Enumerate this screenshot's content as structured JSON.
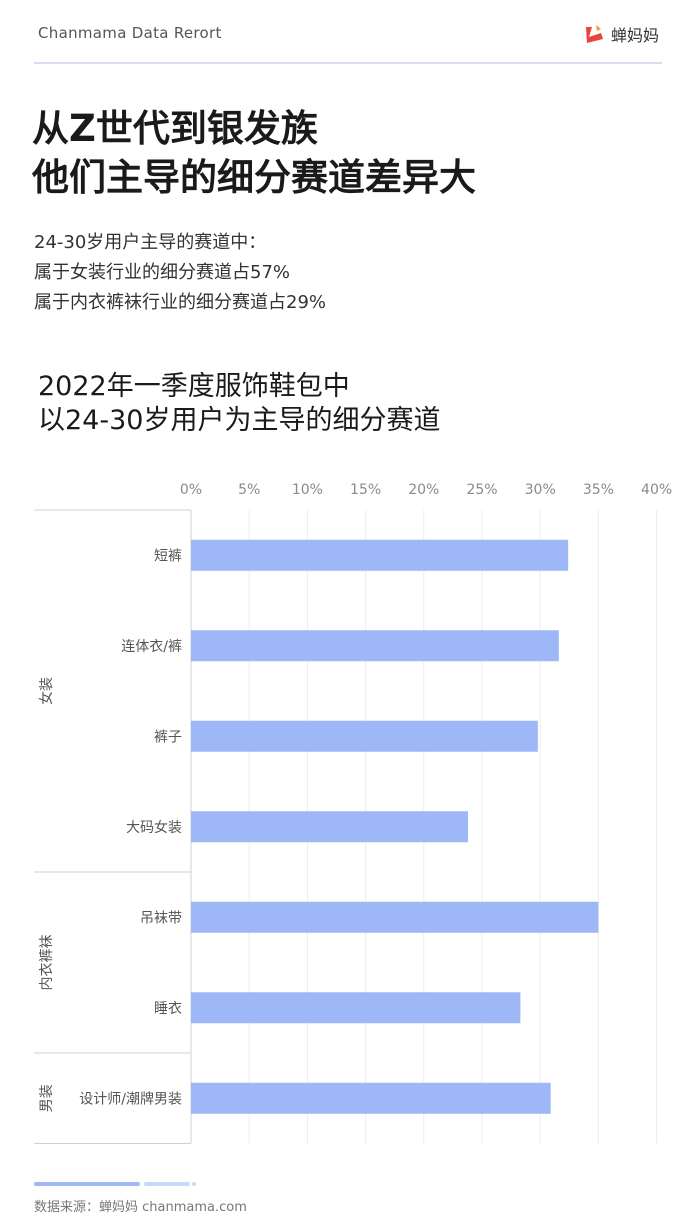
{
  "header": {
    "brand_text": "Chanmama Data Rerort",
    "logo_text": "蝉妈妈",
    "logo_icon": "chanmama-logo-icon"
  },
  "headline": {
    "line1": "从Z世代到银发族",
    "line2": "他们主导的细分赛道差异大"
  },
  "summary": {
    "line1": "24-30岁用户主导的赛道中：",
    "line2": "属于女装行业的细分赛道占57%",
    "line3": "属于内衣裤袜行业的细分赛道占29%"
  },
  "chart_title": {
    "line1": "2022年一季度服饰鞋包中",
    "line2": "以24-30岁用户为主导的细分赛道"
  },
  "colors": {
    "bar": "#9db7f7",
    "accent": "#e8453c"
  },
  "chart_data": {
    "type": "bar",
    "orientation": "horizontal",
    "title": "2022年一季度服饰鞋包中 以24-30岁用户为主导的细分赛道",
    "xlabel": "",
    "ylabel": "",
    "xlim": [
      0,
      40
    ],
    "xticks": [
      "0%",
      "5%",
      "10%",
      "15%",
      "20%",
      "25%",
      "30%",
      "35%",
      "40%"
    ],
    "grid": true,
    "axis_position": "top",
    "groups": [
      {
        "name": "女装",
        "categories": [
          "短裤",
          "连体衣/裤",
          "裤子",
          "大码女装"
        ],
        "values": [
          32.4,
          31.6,
          29.8,
          23.8
        ]
      },
      {
        "name": "内衣裤袜",
        "categories": [
          "吊袜带",
          "睡衣"
        ],
        "values": [
          35.0,
          28.3
        ]
      },
      {
        "name": "男装",
        "categories": [
          "设计师/潮牌男装"
        ],
        "values": [
          30.9
        ]
      }
    ]
  },
  "footer": {
    "source": "数据来源：蝉妈妈 chanmama.com"
  }
}
